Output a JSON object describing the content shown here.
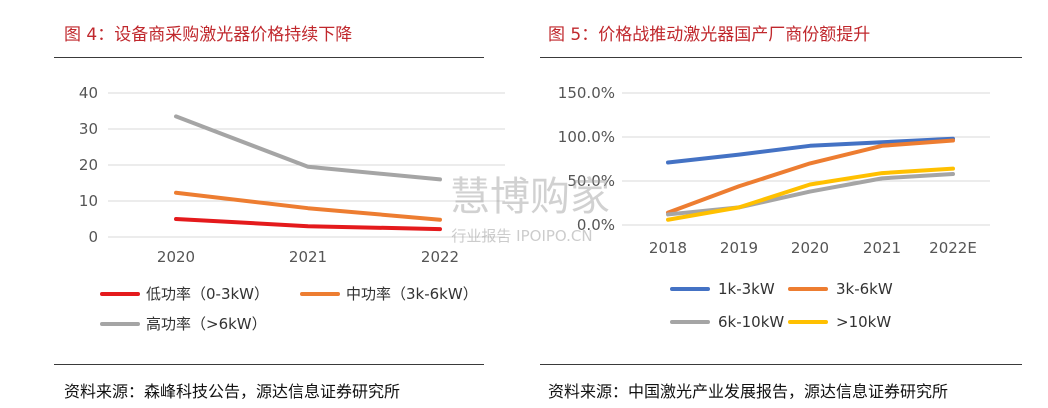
{
  "header": {
    "left_title": "图 4：设备商采购激光器价格持续下降",
    "right_title": "图 5：价格战推动激光器国产厂商份额提升"
  },
  "footer": {
    "left_source": "资料来源：森峰科技公告，源达信息证券研究所",
    "right_source": "资料来源：中国激光产业发展报告，源达信息证券研究所"
  },
  "watermark": {
    "main": "慧博购家",
    "sub": "行业报告 IPOIPO.CN"
  },
  "chart_data": [
    {
      "type": "line",
      "categories": [
        "2020",
        "2021",
        "2022"
      ],
      "ylim": [
        0,
        40
      ],
      "yticks": [
        "0",
        "10",
        "20",
        "30",
        "40"
      ],
      "grid": true,
      "legend_position": "bottom",
      "series": [
        {
          "name": "低功率（0-3kW）",
          "color": "#e41a1c",
          "values": [
            5,
            3,
            2.2
          ]
        },
        {
          "name": "中功率（3k-6kW）",
          "color": "#ed7d31",
          "values": [
            12.3,
            8,
            4.8
          ]
        },
        {
          "name": "高功率（>6kW）",
          "color": "#a5a5a5",
          "values": [
            33.5,
            19.5,
            16
          ]
        }
      ]
    },
    {
      "type": "line",
      "categories": [
        "2018",
        "2019",
        "2020",
        "2021",
        "2022E"
      ],
      "ylim": [
        0,
        150
      ],
      "yticks": [
        "0.0%",
        "50.0%",
        "100.0%",
        "150.0%"
      ],
      "grid": true,
      "legend_position": "bottom",
      "series": [
        {
          "name": "1k-3kW",
          "color": "#4472c4",
          "values": [
            71,
            80,
            90,
            94,
            98
          ]
        },
        {
          "name": "3k-6kW",
          "color": "#ed7d31",
          "values": [
            14,
            44,
            70,
            90,
            96
          ]
        },
        {
          "name": "6k-10kW",
          "color": "#a5a5a5",
          "values": [
            12,
            20,
            38,
            53,
            58
          ]
        },
        {
          "name": ">10kW",
          "color": "#ffc000",
          "values": [
            6,
            20,
            46,
            59,
            64
          ]
        }
      ]
    }
  ]
}
